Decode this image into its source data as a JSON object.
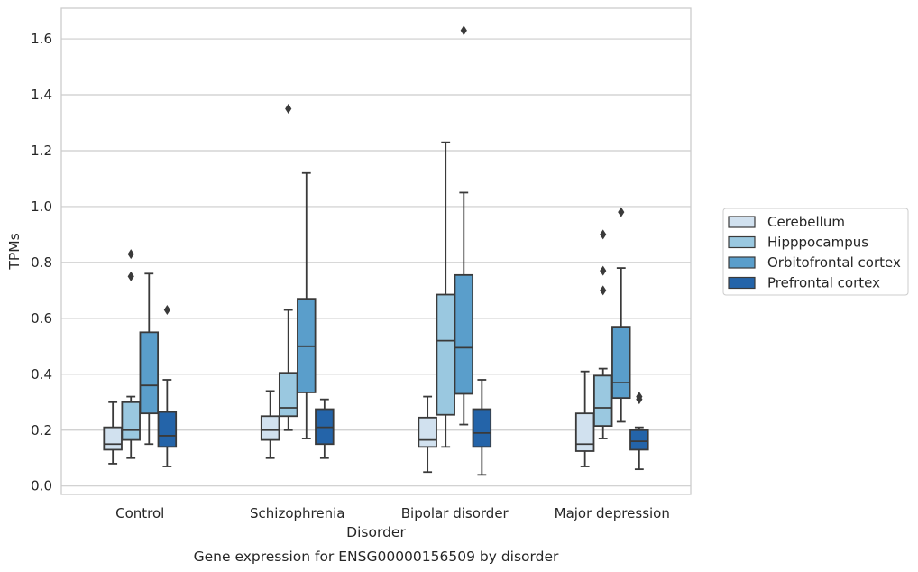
{
  "chart_data": {
    "type": "box",
    "title": "Gene expression for ENSG00000156509 by disorder",
    "xlabel": "Disorder",
    "ylabel": "TPMs",
    "ylim": [
      -0.03,
      1.71
    ],
    "yticks": [
      "0.0",
      "0.2",
      "0.4",
      "0.6",
      "0.8",
      "1.0",
      "1.2",
      "1.4",
      "1.6"
    ],
    "grid": true,
    "legend_position": "right",
    "categories": [
      "Control",
      "Schizophrenia",
      "Bipolar disorder",
      "Major depression"
    ],
    "series": [
      {
        "name": "Cerebellum",
        "color": "#d1e1ef",
        "boxes": [
          {
            "whislo": 0.08,
            "q1": 0.13,
            "med": 0.15,
            "q3": 0.21,
            "whishi": 0.3,
            "fliers": []
          },
          {
            "whislo": 0.1,
            "q1": 0.165,
            "med": 0.2,
            "q3": 0.25,
            "whishi": 0.34,
            "fliers": []
          },
          {
            "whislo": 0.05,
            "q1": 0.14,
            "med": 0.165,
            "q3": 0.245,
            "whishi": 0.32,
            "fliers": []
          },
          {
            "whislo": 0.07,
            "q1": 0.125,
            "med": 0.15,
            "q3": 0.26,
            "whishi": 0.41,
            "fliers": []
          }
        ]
      },
      {
        "name": "Hipppocampus",
        "color": "#9ac8e0",
        "boxes": [
          {
            "whislo": 0.1,
            "q1": 0.165,
            "med": 0.2,
            "q3": 0.3,
            "whishi": 0.32,
            "fliers": [
              0.75,
              0.83
            ]
          },
          {
            "whislo": 0.2,
            "q1": 0.25,
            "med": 0.28,
            "q3": 0.405,
            "whishi": 0.63,
            "fliers": [
              1.35
            ]
          },
          {
            "whislo": 0.14,
            "q1": 0.255,
            "med": 0.52,
            "q3": 0.685,
            "whishi": 1.23,
            "fliers": []
          },
          {
            "whislo": 0.17,
            "q1": 0.215,
            "med": 0.28,
            "q3": 0.395,
            "whishi": 0.42,
            "fliers": [
              0.7,
              0.77,
              0.9
            ]
          }
        ]
      },
      {
        "name": "Orbitofrontal cortex",
        "color": "#5a9ecb",
        "boxes": [
          {
            "whislo": 0.15,
            "q1": 0.26,
            "med": 0.36,
            "q3": 0.55,
            "whishi": 0.76,
            "fliers": []
          },
          {
            "whislo": 0.17,
            "q1": 0.335,
            "med": 0.5,
            "q3": 0.67,
            "whishi": 1.12,
            "fliers": []
          },
          {
            "whislo": 0.22,
            "q1": 0.33,
            "med": 0.495,
            "q3": 0.755,
            "whishi": 1.05,
            "fliers": [
              1.63
            ]
          },
          {
            "whislo": 0.23,
            "q1": 0.315,
            "med": 0.37,
            "q3": 0.57,
            "whishi": 0.78,
            "fliers": [
              0.98
            ]
          }
        ]
      },
      {
        "name": "Prefrontal cortex",
        "color": "#2464a9",
        "boxes": [
          {
            "whislo": 0.07,
            "q1": 0.14,
            "med": 0.18,
            "q3": 0.265,
            "whishi": 0.38,
            "fliers": [
              0.63
            ]
          },
          {
            "whislo": 0.1,
            "q1": 0.15,
            "med": 0.21,
            "q3": 0.275,
            "whishi": 0.31,
            "fliers": []
          },
          {
            "whislo": 0.04,
            "q1": 0.14,
            "med": 0.19,
            "q3": 0.275,
            "whishi": 0.38,
            "fliers": []
          },
          {
            "whislo": 0.06,
            "q1": 0.13,
            "med": 0.16,
            "q3": 0.2,
            "whishi": 0.21,
            "fliers": [
              0.31,
              0.32
            ]
          }
        ]
      }
    ]
  }
}
